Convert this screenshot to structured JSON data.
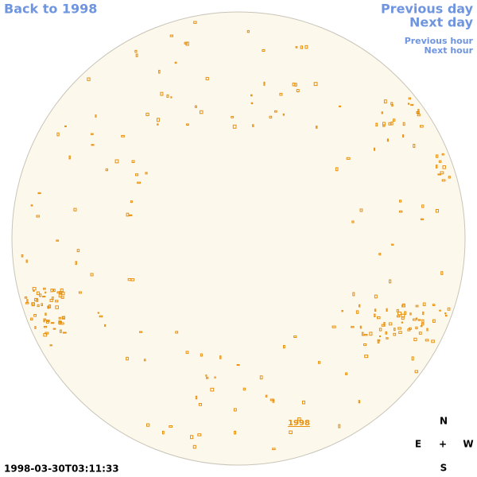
{
  "navigation": {
    "back_to_year": "Back to 1998",
    "previous_day": "Previous day",
    "next_day": "Next day",
    "previous_hour": "Previous hour",
    "next_hour": "Next hour"
  },
  "image": {
    "year_link": "1998",
    "timestamp": "1998-03-30T03:11:33"
  },
  "compass": {
    "north": "N",
    "east": "E",
    "center": "+",
    "west": "W",
    "south": "S"
  }
}
